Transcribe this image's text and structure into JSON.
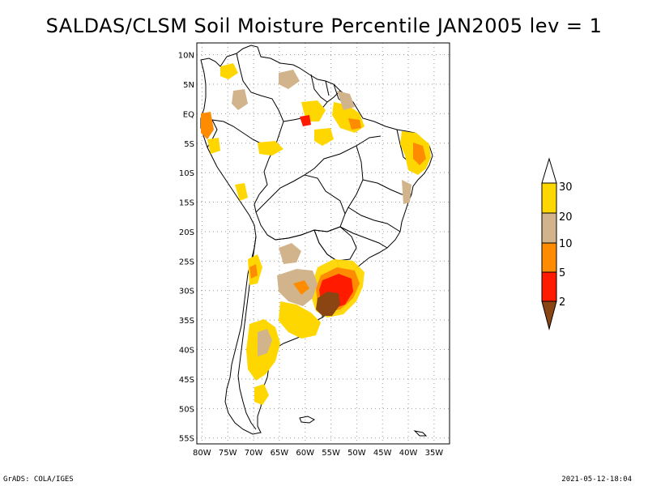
{
  "title": "SALDAS/CLSM Soil Moisture Percentile JAN2005 lev = 1",
  "footer": {
    "left": "GrADS: COLA/IGES",
    "right": "2021-05-12-18:04"
  },
  "map": {
    "region": "South America",
    "lat_labels": [
      "10N",
      "5N",
      "EQ",
      "5S",
      "10S",
      "15S",
      "20S",
      "25S",
      "30S",
      "35S",
      "40S",
      "45S",
      "50S",
      "55S"
    ],
    "lat_values": [
      10,
      5,
      0,
      -5,
      -10,
      -15,
      -20,
      -25,
      -30,
      -35,
      -40,
      -45,
      -50,
      -55
    ],
    "lon_labels": [
      "80W",
      "75W",
      "70W",
      "65W",
      "60W",
      "55W",
      "50W",
      "45W",
      "40W",
      "35W"
    ],
    "lon_values": [
      -80,
      -75,
      -70,
      -65,
      -60,
      -55,
      -50,
      -45,
      -40,
      -35
    ],
    "lon_range": [
      -81,
      -32
    ],
    "lat_range": [
      -56,
      12
    ],
    "gridlines": true
  },
  "legend": {
    "labels": [
      "2",
      "5",
      "10",
      "20",
      "30"
    ],
    "colors": {
      "above": "#ffffff",
      "c20_30": "#ffd700",
      "c10_20": "#d2b48c",
      "c5_10": "#ff8c00",
      "c2_5": "#ff1a00",
      "below": "#8b4513"
    }
  },
  "colors": {
    "dark_red": "#cc0000",
    "land_outline": "#000000",
    "grid": "#999999"
  }
}
